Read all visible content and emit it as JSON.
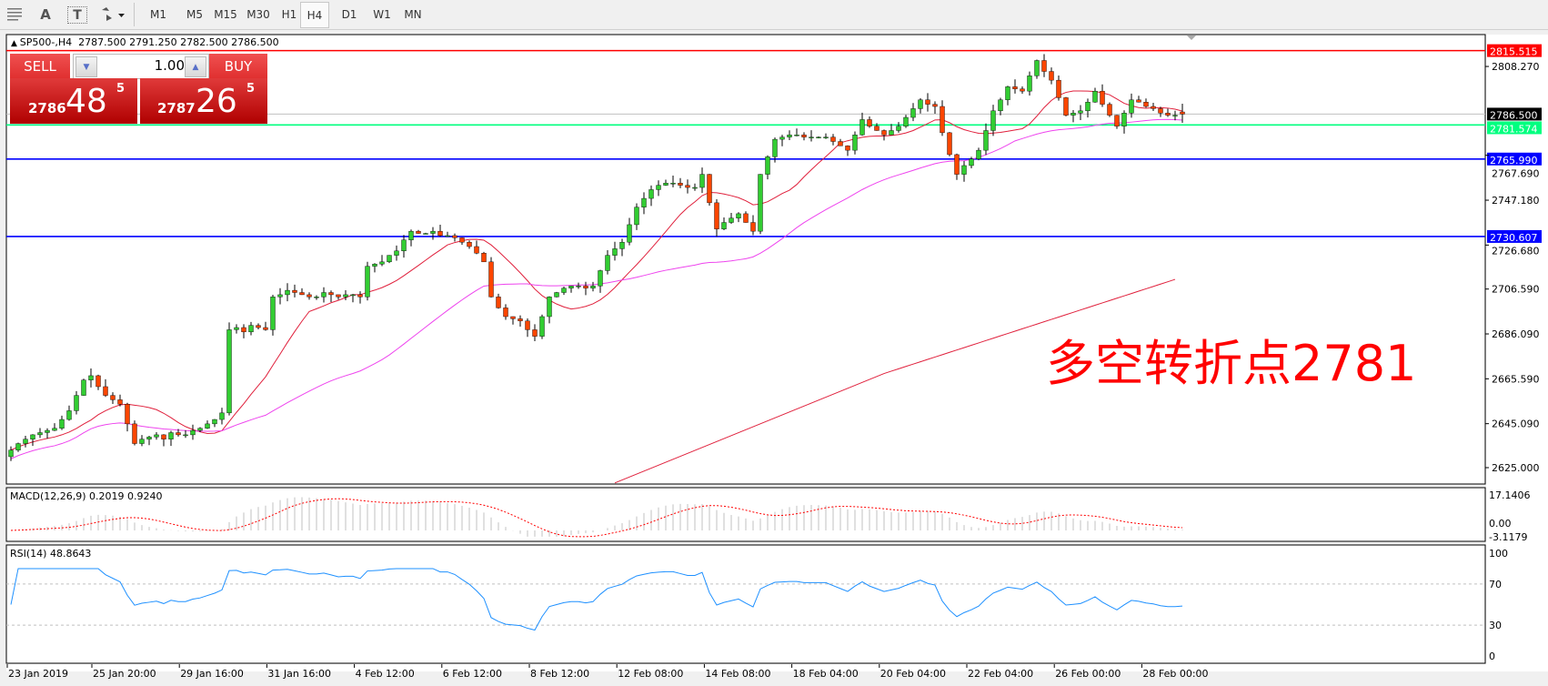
{
  "toolbar": {
    "tools": [
      {
        "name": "fibonacci-fan-icon"
      },
      {
        "label": "A",
        "name": "text-tool"
      },
      {
        "label": "T",
        "name": "text-label-tool"
      },
      {
        "name": "arrows-dropdown-icon"
      }
    ],
    "timeframes": [
      "M1",
      "M5",
      "M15",
      "M30",
      "H1",
      "H4",
      "D1",
      "W1",
      "MN"
    ],
    "active_timeframe": "H4"
  },
  "chart_header": {
    "symbol": "SP500-,H4",
    "ohlc": "2787.500 2791.250 2782.500 2786.500"
  },
  "trade_panel": {
    "sell_label": "SELL",
    "buy_label": "BUY",
    "quantity": "1.00",
    "sell_price": {
      "prefix": "2786",
      "big": "48",
      "sup": "5"
    },
    "buy_price": {
      "prefix": "2787",
      "big": "26",
      "sup": "5"
    }
  },
  "annotation": {
    "text": "多空转折点2781",
    "color": "#ff0000"
  },
  "colors": {
    "bull": "#32cd32",
    "bear": "#ff4500",
    "ma_fast": "#e0203c",
    "ma_slow": "#ee44ee",
    "ma_long": "#e0203c",
    "macd_hist": "#c0c0c0",
    "macd_signal": "#ff0000",
    "rsi": "#1e90ff"
  },
  "chart_data": [
    {
      "type": "candlestick",
      "pane": "main",
      "ylim": [
        2620,
        2820
      ],
      "price_ticks": [
        "2808.270",
        "2786.500",
        "2767.690",
        "2747.180",
        "2726.680",
        "2706.590",
        "2686.090",
        "2665.590",
        "2645.090",
        "2625.000"
      ],
      "x_tick_labels": [
        "23 Jan 2019",
        "25 Jan 20:00",
        "29 Jan 16:00",
        "31 Jan 16:00",
        "4 Feb 12:00",
        "6 Feb 12:00",
        "8 Feb 12:00",
        "12 Feb 08:00",
        "14 Feb 08:00",
        "18 Feb 04:00",
        "20 Feb 04:00",
        "22 Feb 04:00",
        "26 Feb 00:00",
        "28 Feb 00:00"
      ],
      "closes": [
        2633,
        2636,
        2638,
        2640,
        2641,
        2642,
        2643,
        2647,
        2651,
        2658,
        2665,
        2667,
        2662,
        2658,
        2656,
        2654,
        2645,
        2636,
        2638,
        2639,
        2640,
        2638,
        2641,
        2640,
        2640,
        2642,
        2643,
        2645,
        2647,
        2650,
        2688,
        2689,
        2687,
        2690,
        2689,
        2688,
        2703,
        2704,
        2706,
        2705,
        2704,
        2703,
        2703,
        2705,
        2704,
        2703,
        2704,
        2704,
        2703,
        2717,
        2718,
        2719,
        2722,
        2724,
        2729,
        2733,
        2732,
        2732,
        2733,
        2731,
        2731,
        2730,
        2728,
        2726,
        2723,
        2719,
        2703,
        2698,
        2694,
        2693,
        2692,
        2688,
        2685,
        2694,
        2703,
        2705,
        2707,
        2708,
        2708,
        2707,
        2708,
        2715,
        2722,
        2725,
        2728,
        2736,
        2744,
        2748,
        2752,
        2754,
        2755,
        2755,
        2754,
        2753,
        2753,
        2759,
        2746,
        2734,
        2737,
        2739,
        2741,
        2737,
        2733,
        2759,
        2767,
        2775,
        2776,
        2777,
        2777,
        2776,
        2776,
        2776,
        2776,
        2774,
        2772,
        2770,
        2777,
        2784,
        2781,
        2779,
        2777,
        2779,
        2781,
        2785,
        2789,
        2793,
        2791,
        2790,
        2778,
        2768,
        2759,
        2763,
        2766,
        2770,
        2779,
        2788,
        2793,
        2799,
        2798,
        2797,
        2804,
        2811,
        2806,
        2802,
        2794,
        2786,
        2787,
        2788,
        2792,
        2797,
        2791,
        2786,
        2781,
        2787,
        2793,
        2792,
        2790,
        2789,
        2787,
        2786,
        2786,
        2786.5
      ],
      "last_bar": {
        "open": 2787.5,
        "high": 2791.25,
        "low": 2782.5,
        "close": 2786.5
      },
      "ma_long": [
        [
          83,
          2618
        ],
        [
          120,
          2668
        ],
        [
          160,
          2711
        ]
      ],
      "horizontal_lines": [
        {
          "value": "2815.515",
          "color": "#ff0000"
        },
        {
          "value": "2786.500",
          "color": "#c0c0c0",
          "label_bg": "#000000"
        },
        {
          "value": "2781.574",
          "color": "#00ff7f"
        },
        {
          "value": "2765.990",
          "color": "#0000ff"
        },
        {
          "value": "2730.607",
          "color": "#0000ff"
        }
      ]
    },
    {
      "type": "bar",
      "pane": "macd",
      "title": "MACD(12,26,9) 0.2019 0.9240",
      "ylim": [
        -3.1179,
        17.1406
      ],
      "tick_labels": [
        "17.1406",
        "0.00",
        "-3.1179"
      ]
    },
    {
      "type": "line",
      "pane": "rsi",
      "title": "RSI(14) 48.8643",
      "ylim": [
        0,
        100
      ],
      "levels": [
        70,
        30
      ],
      "tick_labels": [
        "100",
        "70",
        "30",
        "0"
      ]
    }
  ]
}
